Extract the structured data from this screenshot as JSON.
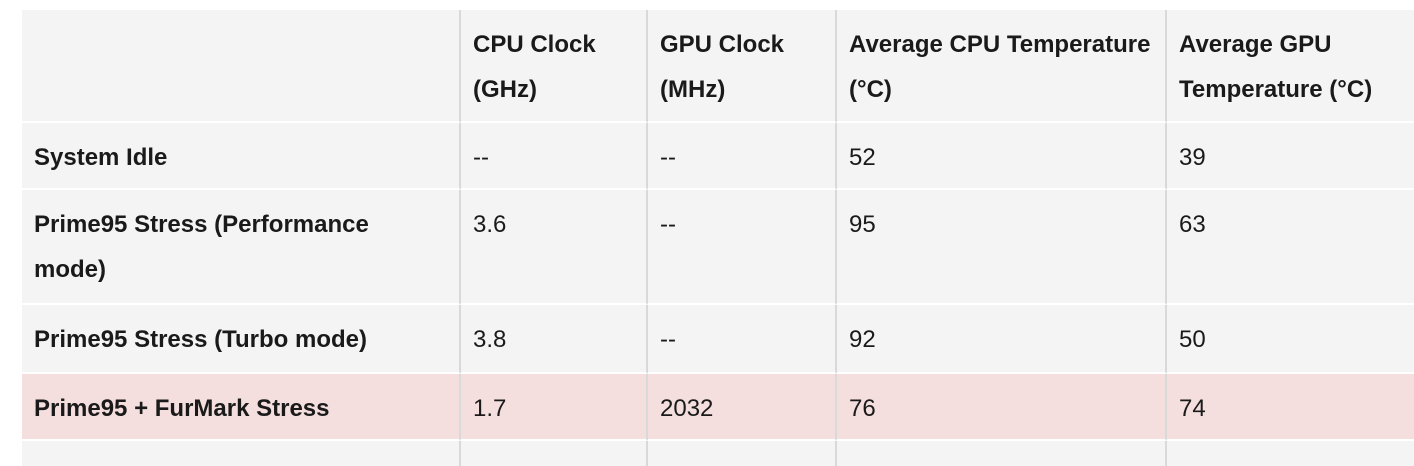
{
  "table": {
    "header": [
      "CPU Clock (GHz)",
      "GPU Clock (MHz)",
      "Average CPU Temperature (°C)",
      "Average GPU Temperature (°C)"
    ],
    "rows": [
      [
        "System Idle",
        "--",
        "--",
        52,
        39
      ],
      [
        "Prime95 Stress (Performance mode)",
        3.6,
        "--",
        95,
        63
      ],
      [
        "Prime95 Stress (Turbo mode)",
        3.8,
        "--",
        92,
        50
      ],
      [
        "Prime95 + FurMark Stress",
        1.7,
        2032,
        76,
        74
      ]
    ]
  }
}
